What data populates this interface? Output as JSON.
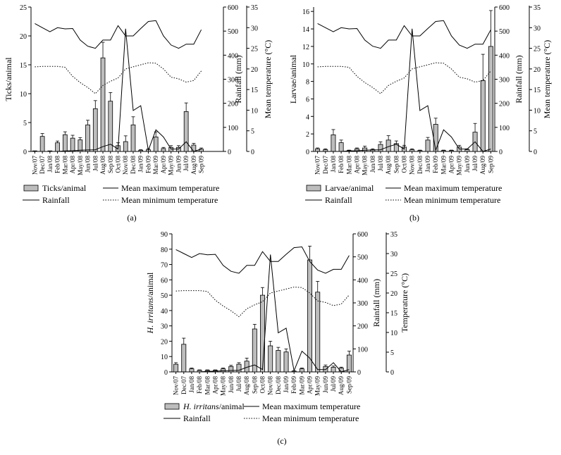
{
  "months": [
    "Nov/07",
    "Dec/07",
    "Jan/08",
    "Feb/08",
    "Mar/08",
    "Apr/08",
    "May/08",
    "Jun/08",
    "Jul/08",
    "Aug/08",
    "Sep/08",
    "Oct/08",
    "Nov/08",
    "Dec/08",
    "Jan/09",
    "Feb/09",
    "Mar/09",
    "Apr/09",
    "May/09",
    "Jun/09",
    "Jul/09",
    "Aug/09",
    "Sep/09"
  ],
  "rainfall": [
    0,
    0,
    0,
    0,
    2,
    3,
    5,
    6,
    7,
    20,
    30,
    10,
    510,
    170,
    190,
    5,
    90,
    60,
    10,
    10,
    40,
    0,
    10
  ],
  "chart_data": [
    {
      "type": "bar",
      "panel_label": "(a)",
      "ylabel_left": "Ticks/animal",
      "ylabel_rainfall": "Rainfall (mm)",
      "ylabel_temp": "Mean temperature (°C)",
      "ylim_left": [
        0,
        25
      ],
      "yticks_left": [
        0,
        5,
        10,
        15,
        20,
        25
      ],
      "bars_name": "Ticks/animal",
      "values": [
        0.1,
        2.6,
        0.1,
        1.5,
        2.9,
        2.3,
        2.0,
        4.6,
        7.4,
        16.2,
        8.7,
        1.0,
        1.7,
        4.6,
        0.2,
        0.3,
        2.5,
        0.5,
        0.7,
        0.7,
        6.9,
        1.1,
        0.4
      ],
      "errors": [
        0,
        0.5,
        0,
        0.3,
        0.5,
        0.5,
        0.4,
        0.8,
        1.4,
        2.7,
        1.5,
        0.5,
        1.0,
        1.4,
        0.1,
        0.2,
        0.9,
        0.2,
        0.3,
        0.3,
        1.5,
        0.3,
        0.2
      ],
      "legend": {
        "bars": "Ticks/animal",
        "rain": "Rainfall",
        "tmax": "Mean maximum temperature",
        "tmin": "Mean minimum temperature"
      }
    },
    {
      "type": "bar",
      "panel_label": "(b)",
      "ylabel_left": "Larvae/animal",
      "ylabel_rainfall": "Rainfall (mm)",
      "ylabel_temp": "Mean temperature (°C)",
      "ylim_left": [
        0,
        16.5
      ],
      "yticks_left": [
        0,
        2,
        4,
        6,
        8,
        10,
        12,
        14,
        16
      ],
      "bars_name": "Larvae/animal",
      "values": [
        0.3,
        0.2,
        1.9,
        1.0,
        0.1,
        0.3,
        0.4,
        0.2,
        0.8,
        1.3,
        0.9,
        0.5,
        0.2,
        0.1,
        1.3,
        3.1,
        0.1,
        0.1,
        0.5,
        0.2,
        2.2,
        8.1,
        12.0
      ],
      "errors": [
        0.1,
        0.1,
        0.6,
        0.3,
        0.05,
        0.1,
        0.2,
        0.1,
        0.3,
        0.5,
        0.3,
        0.2,
        0.1,
        0.05,
        0.3,
        0.7,
        0.05,
        0.05,
        0.2,
        0.1,
        1.0,
        3.0,
        4.1
      ],
      "legend": {
        "bars": "Larvae/animal",
        "rain": "Rainfall",
        "tmax": "Mean maximum temperature",
        "tmin": "Mean minimum temperature"
      }
    },
    {
      "type": "bar",
      "panel_label": "(c)",
      "ylabel_left_italic": "H. irritans",
      "ylabel_left_rest": "/animal",
      "ylabel_rainfall": "Rainfall (mm)",
      "ylabel_temp": "Temperature (°C)",
      "ylim_left": [
        0,
        90
      ],
      "yticks_left": [
        0,
        10,
        20,
        30,
        40,
        50,
        60,
        70,
        80,
        90
      ],
      "bars_name": "H. irritans/animal",
      "values": [
        5,
        18,
        2,
        1,
        1,
        1,
        2,
        3.5,
        5,
        7,
        28,
        50,
        17,
        14,
        13,
        0.5,
        2,
        73,
        52,
        3.5,
        3,
        2.5,
        11
      ],
      "errors": [
        1,
        4,
        0.5,
        0.3,
        0.3,
        0.3,
        0.5,
        0.8,
        1,
        2,
        3,
        5,
        3,
        2,
        2,
        0.2,
        0.5,
        9,
        7,
        1,
        0.8,
        0.6,
        2.5
      ],
      "legend": {
        "bars_italic": "H. irritans",
        "bars_rest": "/animal",
        "rain": "Rainfall",
        "tmax": "Mean maximum temperature",
        "tmin": "Mean minimum temperature"
      }
    }
  ],
  "rainfall_axis": {
    "ylim": [
      0,
      600
    ],
    "yticks": [
      0,
      100,
      200,
      300,
      400,
      500,
      600
    ]
  },
  "temperature_axis": {
    "ylim": [
      0,
      35
    ],
    "yticks": [
      0,
      5,
      10,
      15,
      20,
      25,
      30,
      35
    ]
  },
  "tmax": [
    31,
    30,
    29,
    30,
    29.7,
    29.8,
    27,
    25.5,
    25,
    27,
    27,
    30.5,
    28,
    28,
    29.8,
    31.5,
    31.7,
    28,
    25.8,
    25,
    26,
    26,
    29.5
  ],
  "tmin": [
    20.5,
    20.6,
    20.6,
    20.6,
    20.4,
    18.2,
    16.7,
    15.5,
    14,
    16,
    17,
    17.8,
    20,
    20.5,
    21,
    21.5,
    21.4,
    20,
    18,
    17.6,
    16.8,
    17.2,
    19.5
  ]
}
